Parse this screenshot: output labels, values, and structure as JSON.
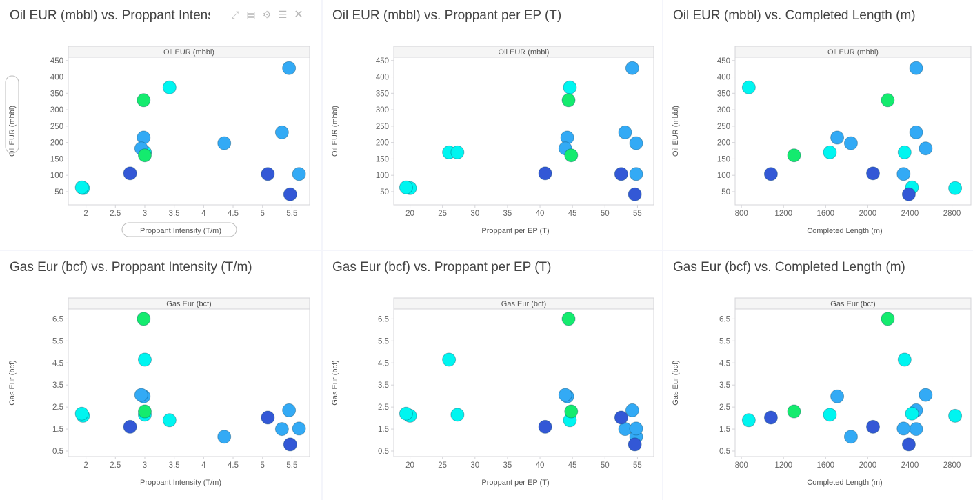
{
  "colors": {
    "blue": "#33aaf5",
    "cyan": "#00f5f0",
    "green": "#14eb6e",
    "dark": "#3358d6",
    "panel_header_bg": "#f5f5f5",
    "axis": "#d4d4d8"
  },
  "toolbar": {
    "icons": [
      "expand-icon",
      "notes-icon",
      "gear-icon",
      "list-icon",
      "close-icon"
    ]
  },
  "chart_data": [
    {
      "type": "scatter",
      "title": "Oil EUR (mbbl) vs. Proppant Intensit",
      "header": "Oil EUR (mbbl)",
      "xlabel": "Proppant Intensity (T/m)",
      "ylabel": "Oil EUR (mbbl)",
      "xkey": "pi",
      "ykey": "oil",
      "xlim": [
        1.7,
        5.8
      ],
      "ylim": [
        10,
        460
      ],
      "xticks": [
        2,
        2.5,
        3,
        3.5,
        4,
        4.5,
        5,
        5.5
      ],
      "yticks": [
        50,
        100,
        150,
        200,
        250,
        300,
        350,
        400,
        450
      ],
      "has_toolbar": true,
      "pill_labels": true
    },
    {
      "type": "scatter",
      "title": "Oil EUR (mbbl) vs. Proppant per EP (T)",
      "header": "Oil EUR (mbbl)",
      "xlabel": "Proppant per EP (T)",
      "ylabel": "Oil EUR (mbbl)",
      "xkey": "pep",
      "ykey": "oil",
      "xlim": [
        17.5,
        57.5
      ],
      "ylim": [
        10,
        460
      ],
      "xticks": [
        20,
        25,
        30,
        35,
        40,
        45,
        50,
        55
      ],
      "yticks": [
        50,
        100,
        150,
        200,
        250,
        300,
        350,
        400,
        450
      ],
      "has_toolbar": false,
      "pill_labels": false
    },
    {
      "type": "scatter",
      "title": "Oil EUR (mbbl) vs. Completed Length (m)",
      "header": "Oil EUR (mbbl)",
      "xlabel": "Completed Length (m)",
      "ylabel": "Oil EUR (mbbl)",
      "xkey": "cl",
      "ykey": "oil",
      "xlim": [
        740,
        2980
      ],
      "ylim": [
        10,
        460
      ],
      "xticks": [
        800,
        1200,
        1600,
        2000,
        2400,
        2800
      ],
      "yticks": [
        50,
        100,
        150,
        200,
        250,
        300,
        350,
        400,
        450
      ],
      "has_toolbar": false,
      "pill_labels": false
    },
    {
      "type": "scatter",
      "title": "Gas Eur (bcf) vs. Proppant Intensity (T/m)",
      "header": "Gas Eur (bcf)",
      "xlabel": "Proppant Intensity (T/m)",
      "ylabel": "Gas Eur (bcf)",
      "xkey": "pi",
      "ykey": "gas",
      "xlim": [
        1.7,
        5.8
      ],
      "ylim": [
        0.25,
        6.95
      ],
      "xticks": [
        2,
        2.5,
        3,
        3.5,
        4,
        4.5,
        5,
        5.5
      ],
      "yticks": [
        0.5,
        1.5,
        2.5,
        3.5,
        4.5,
        5.5,
        6.5
      ],
      "has_toolbar": false,
      "pill_labels": false
    },
    {
      "type": "scatter",
      "title": "Gas Eur (bcf) vs. Proppant per EP (T)",
      "header": "Gas Eur (bcf)",
      "xlabel": "Proppant per EP (T)",
      "ylabel": "Gas Eur (bcf)",
      "xkey": "pep",
      "ykey": "gas",
      "xlim": [
        17.5,
        57.5
      ],
      "ylim": [
        0.25,
        6.95
      ],
      "xticks": [
        20,
        25,
        30,
        35,
        40,
        45,
        50,
        55
      ],
      "yticks": [
        0.5,
        1.5,
        2.5,
        3.5,
        4.5,
        5.5,
        6.5
      ],
      "has_toolbar": false,
      "pill_labels": false
    },
    {
      "type": "scatter",
      "title": "Gas Eur (bcf) vs. Completed Length (m)",
      "header": "Gas Eur (bcf)",
      "xlabel": "Completed Length (m)",
      "ylabel": "Gas Eur (bcf)",
      "xkey": "cl",
      "ykey": "gas",
      "xlim": [
        740,
        2980
      ],
      "ylim": [
        0.25,
        6.95
      ],
      "xticks": [
        800,
        1200,
        1600,
        2000,
        2400,
        2800
      ],
      "yticks": [
        0.5,
        1.5,
        2.5,
        3.5,
        4.5,
        5.5,
        6.5
      ],
      "has_toolbar": false,
      "pill_labels": false
    }
  ],
  "wells": [
    {
      "pi": 5.45,
      "pep": 54.2,
      "cl": 2460,
      "oil": 427,
      "gas": 2.35,
      "color": "blue"
    },
    {
      "pi": 3.42,
      "pep": 44.6,
      "cl": 870,
      "oil": 368,
      "gas": 1.9,
      "color": "cyan"
    },
    {
      "pi": 2.98,
      "pep": 44.4,
      "cl": 2190,
      "oil": 329,
      "gas": 6.5,
      "color": "green"
    },
    {
      "pi": 5.33,
      "pep": 53.1,
      "cl": 2460,
      "oil": 231,
      "gas": 1.5,
      "color": "blue"
    },
    {
      "pi": 2.98,
      "pep": 44.2,
      "cl": 1710,
      "oil": 215,
      "gas": 2.98,
      "color": "blue"
    },
    {
      "pi": 4.35,
      "pep": 54.8,
      "cl": 1840,
      "oil": 198,
      "gas": 1.15,
      "color": "blue"
    },
    {
      "pi": 3.0,
      "pep": 26.0,
      "cl": 2350,
      "oil": 170,
      "gas": 4.65,
      "color": "cyan"
    },
    {
      "pi": 3.0,
      "pep": 27.3,
      "cl": 1640,
      "oil": 170,
      "gas": 2.15,
      "color": "cyan"
    },
    {
      "pi": 2.94,
      "pep": 43.9,
      "cl": 2550,
      "oil": 182,
      "gas": 3.05,
      "color": "blue"
    },
    {
      "pi": 3.0,
      "pep": 44.8,
      "cl": 1300,
      "oil": 161,
      "gas": 2.3,
      "color": "green"
    },
    {
      "pi": 2.75,
      "pep": 40.8,
      "cl": 2050,
      "oil": 106,
      "gas": 1.6,
      "color": "dark"
    },
    {
      "pi": 5.09,
      "pep": 52.5,
      "cl": 1080,
      "oil": 104,
      "gas": 2.02,
      "color": "dark"
    },
    {
      "pi": 5.62,
      "pep": 54.8,
      "cl": 2340,
      "oil": 104,
      "gas": 1.52,
      "color": "blue"
    },
    {
      "pi": 1.95,
      "pep": 20.0,
      "cl": 2830,
      "oil": 61,
      "gas": 2.1,
      "color": "cyan"
    },
    {
      "pi": 1.93,
      "pep": 19.4,
      "cl": 2420,
      "oil": 63,
      "gas": 2.2,
      "color": "cyan"
    },
    {
      "pi": 5.47,
      "pep": 54.6,
      "cl": 2390,
      "oil": 42,
      "gas": 0.8,
      "color": "dark"
    }
  ]
}
